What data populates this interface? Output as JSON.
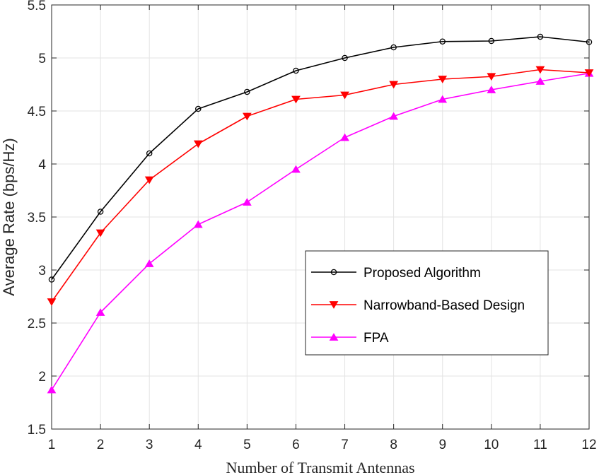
{
  "chart_data": {
    "type": "line",
    "title": "",
    "xlabel": "Number of Transmit Antennas",
    "ylabel": "Average Rate (bps/Hz)",
    "x": [
      1,
      2,
      3,
      4,
      5,
      6,
      7,
      8,
      9,
      10,
      11,
      12
    ],
    "xlim": [
      1,
      12
    ],
    "ylim": [
      1.5,
      5.5
    ],
    "xticks": [
      "1",
      "2",
      "3",
      "4",
      "5",
      "6",
      "7",
      "8",
      "9",
      "10",
      "11",
      "12"
    ],
    "yticks": [
      "1.5",
      "2",
      "2.5",
      "3",
      "3.5",
      "4",
      "4.5",
      "5",
      "5.5"
    ],
    "grid": true,
    "legend_position": "center-right",
    "series": [
      {
        "name": "Proposed Algorithm",
        "color": "#000000",
        "marker": "circle",
        "values": [
          2.91,
          3.55,
          4.1,
          4.52,
          4.68,
          4.88,
          5.0,
          5.1,
          5.155,
          5.16,
          5.2,
          5.15
        ]
      },
      {
        "name": "Narrowband-Based Design",
        "color": "#ff0000",
        "marker": "triangle-down",
        "values": [
          2.7,
          3.35,
          3.85,
          4.19,
          4.45,
          4.61,
          4.65,
          4.75,
          4.8,
          4.825,
          4.89,
          4.86
        ]
      },
      {
        "name": "FPA",
        "color": "#ff00ff",
        "marker": "triangle-up",
        "values": [
          1.87,
          2.6,
          3.06,
          3.43,
          3.64,
          3.95,
          4.25,
          4.45,
          4.61,
          4.7,
          4.78,
          4.855
        ]
      }
    ]
  }
}
